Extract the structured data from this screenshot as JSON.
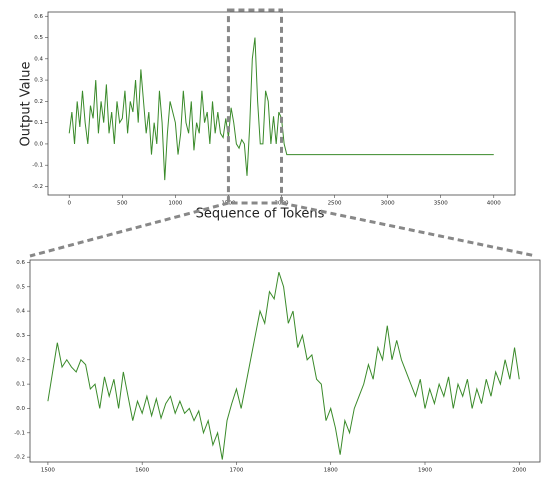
{
  "chart_data": [
    {
      "type": "line",
      "xlabel": "Sequence of Tokens",
      "ylabel": "Output Value",
      "x": [
        0,
        25,
        50,
        75,
        100,
        125,
        150,
        175,
        200,
        225,
        250,
        275,
        300,
        325,
        350,
        375,
        400,
        425,
        450,
        475,
        500,
        525,
        550,
        575,
        600,
        625,
        650,
        675,
        700,
        725,
        750,
        775,
        800,
        825,
        850,
        875,
        900,
        925,
        950,
        975,
        1000,
        1025,
        1050,
        1075,
        1100,
        1125,
        1150,
        1175,
        1200,
        1225,
        1250,
        1275,
        1300,
        1325,
        1350,
        1375,
        1400,
        1425,
        1450,
        1475,
        1500,
        1525,
        1550,
        1575,
        1600,
        1625,
        1650,
        1675,
        1700,
        1725,
        1750,
        1775,
        1800,
        1825,
        1850,
        1875,
        1900,
        1925,
        1950,
        1975,
        2000,
        2025,
        2050,
        2075,
        4000
      ],
      "series": [
        {
          "color": "#3a8a2a",
          "values": [
            0.05,
            0.15,
            0.0,
            0.2,
            0.08,
            0.25,
            0.1,
            0.0,
            0.18,
            0.12,
            0.3,
            0.05,
            0.2,
            0.1,
            0.28,
            0.05,
            0.15,
            0.0,
            0.2,
            0.1,
            0.12,
            0.25,
            0.05,
            0.2,
            0.15,
            0.3,
            0.1,
            0.35,
            0.2,
            0.05,
            0.15,
            -0.05,
            0.1,
            0.0,
            0.25,
            0.1,
            -0.17,
            0.05,
            0.2,
            0.15,
            0.1,
            -0.05,
            0.05,
            0.25,
            0.1,
            0.05,
            0.2,
            -0.03,
            0.1,
            0.05,
            0.25,
            0.1,
            0.15,
            0.0,
            0.2,
            0.05,
            0.15,
            0.05,
            0.03,
            0.12,
            0.03,
            0.17,
            0.1,
            0.0,
            -0.02,
            0.02,
            0.0,
            -0.15,
            0.08,
            0.4,
            0.5,
            0.2,
            0.0,
            0.0,
            0.25,
            0.2,
            0.0,
            0.13,
            0.0,
            0.15,
            0.12,
            0.0,
            -0.05,
            -0.05,
            -0.05
          ]
        }
      ],
      "xlim": [
        -200,
        4200
      ],
      "ylim": [
        -0.24,
        0.62
      ],
      "xticks": [
        0,
        500,
        1000,
        1500,
        2000,
        2500,
        3000,
        3500,
        4000
      ],
      "yticks": [
        -0.2,
        -0.1,
        {
          "value": 0,
          "label": "0.0"
        },
        0.1,
        0.2,
        0.3,
        0.4,
        0.5,
        0.6
      ]
    },
    {
      "type": "line",
      "x": [
        1500,
        1505,
        1510,
        1515,
        1520,
        1525,
        1530,
        1535,
        1540,
        1545,
        1550,
        1555,
        1560,
        1565,
        1570,
        1575,
        1580,
        1585,
        1590,
        1595,
        1600,
        1605,
        1610,
        1615,
        1620,
        1625,
        1630,
        1635,
        1640,
        1645,
        1650,
        1655,
        1660,
        1665,
        1670,
        1675,
        1680,
        1685,
        1690,
        1695,
        1700,
        1705,
        1710,
        1715,
        1720,
        1725,
        1730,
        1735,
        1740,
        1745,
        1750,
        1755,
        1760,
        1765,
        1770,
        1775,
        1780,
        1785,
        1790,
        1795,
        1800,
        1805,
        1810,
        1815,
        1820,
        1825,
        1830,
        1835,
        1840,
        1845,
        1850,
        1855,
        1860,
        1865,
        1870,
        1875,
        1880,
        1885,
        1890,
        1895,
        1900,
        1905,
        1910,
        1915,
        1920,
        1925,
        1930,
        1935,
        1940,
        1945,
        1950,
        1955,
        1960,
        1965,
        1970,
        1975,
        1980,
        1985,
        1990,
        1995,
        2000
      ],
      "series": [
        {
          "color": "#3a8a2a",
          "values": [
            0.03,
            0.15,
            0.27,
            0.17,
            0.2,
            0.17,
            0.15,
            0.2,
            0.18,
            0.08,
            0.1,
            0.0,
            0.13,
            0.05,
            0.12,
            0.0,
            0.15,
            0.05,
            -0.05,
            0.03,
            -0.02,
            0.05,
            -0.03,
            0.04,
            -0.04,
            0.02,
            0.05,
            -0.02,
            0.03,
            -0.02,
            0.0,
            -0.05,
            -0.01,
            -0.1,
            -0.05,
            -0.15,
            -0.1,
            -0.21,
            -0.05,
            0.02,
            0.08,
            0.0,
            0.1,
            0.2,
            0.3,
            0.4,
            0.35,
            0.48,
            0.45,
            0.56,
            0.5,
            0.35,
            0.4,
            0.25,
            0.3,
            0.2,
            0.22,
            0.12,
            0.1,
            -0.05,
            0.0,
            -0.08,
            -0.19,
            -0.05,
            -0.1,
            0.0,
            0.05,
            0.1,
            0.18,
            0.12,
            0.25,
            0.2,
            0.34,
            0.2,
            0.28,
            0.2,
            0.15,
            0.1,
            0.05,
            0.12,
            0.0,
            0.08,
            0.02,
            0.1,
            0.05,
            0.13,
            0.0,
            0.1,
            0.05,
            0.12,
            0.0,
            0.08,
            0.02,
            0.12,
            0.05,
            0.15,
            0.1,
            0.2,
            0.12,
            0.25,
            0.12
          ]
        }
      ],
      "xlim": [
        1481,
        2022
      ],
      "ylim": [
        -0.22,
        0.61
      ],
      "xticks": [
        1500,
        1600,
        1700,
        1800,
        1900,
        2000
      ],
      "yticks": [
        -0.2,
        -0.1,
        {
          "value": 0,
          "label": "0.0"
        },
        0.1,
        0.2,
        0.3,
        0.4,
        0.5,
        0.6
      ]
    }
  ]
}
